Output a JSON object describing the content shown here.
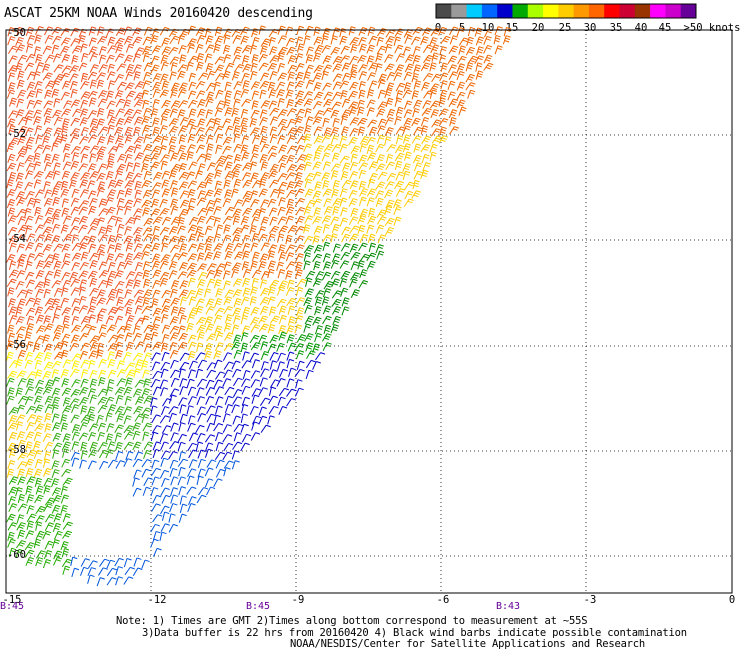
{
  "title": "ASCAT 25KM NOAA Winds 20160420 descending",
  "legend": {
    "labels": [
      "0",
      "5",
      "10",
      "15",
      "20",
      "25",
      "30",
      "35",
      "40",
      "45",
      ">50 knots"
    ],
    "colors": [
      "#4a4a4a",
      "#9a9a9a",
      "#00ccff",
      "#0066ff",
      "#0000cc",
      "#00aa00",
      "#aaff00",
      "#ffff00",
      "#ffcc00",
      "#ff9900",
      "#ff6600",
      "#ff0000",
      "#cc0033",
      "#993300",
      "#ff00ff",
      "#cc00cc",
      "#660099"
    ]
  },
  "axes": {
    "lat_labels": [
      "-50",
      "-52",
      "-54",
      "-56",
      "-58",
      "-60"
    ],
    "lon_labels": [
      "-15",
      "-12",
      "-9",
      "-6",
      "-3",
      "0"
    ]
  },
  "time_labels": [
    "B:45",
    "B:45",
    "B:43"
  ],
  "notes": [
    "Note: 1) Times are GMT 2)Times along bottom correspond to measurement at ~55S",
    "3)Data buffer is 22 hrs from 20160420 4) Black wind barbs indicate possible contamination",
    "NOAA/NESDIS/Center for Satellite Applications and Research"
  ]
}
